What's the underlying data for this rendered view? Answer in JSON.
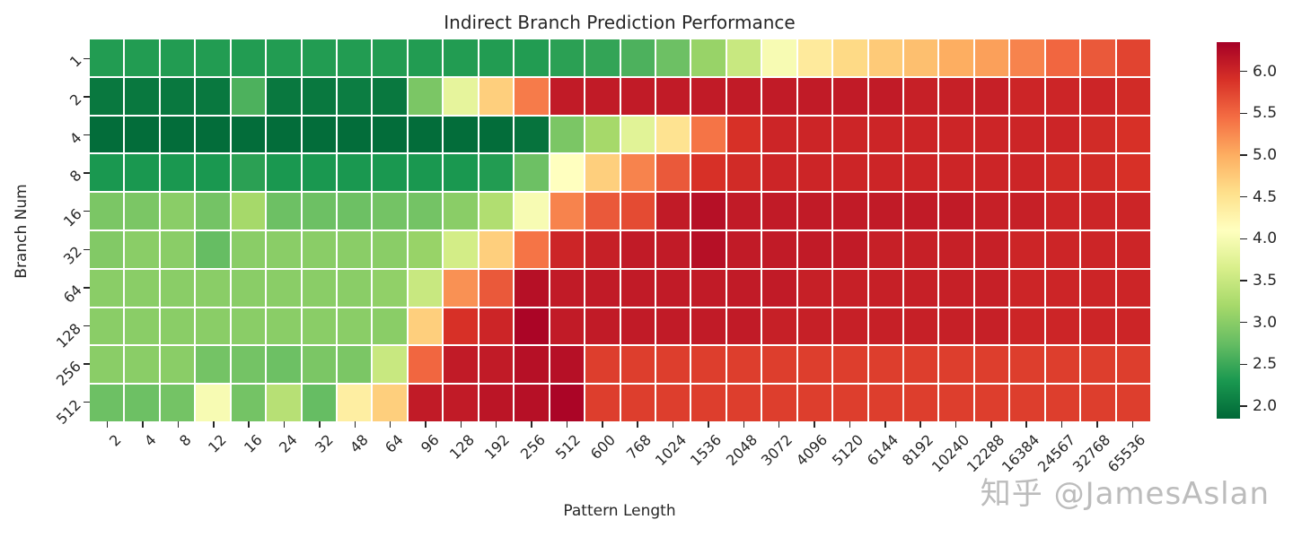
{
  "title": "Indirect Branch Prediction Performance",
  "watermark": "知乎 @JamesAslan",
  "chart_data": {
    "type": "heatmap",
    "title": "Indirect Branch Prediction Performance",
    "xlabel": "Pattern Length",
    "ylabel": "Branch Num",
    "legend_position": "right-colorbar",
    "grid": "white cell separators",
    "colormap": "RdYlGn_r",
    "colormap_stops": [
      "#006837",
      "#1a9850",
      "#66bd63",
      "#a6d96a",
      "#d9ef8b",
      "#ffffbf",
      "#fee08b",
      "#fdae61",
      "#f46d43",
      "#d73027",
      "#a50026"
    ],
    "vmin": 1.85,
    "vmax": 6.35,
    "colorbar_ticks": [
      6.0,
      5.5,
      5.0,
      4.5,
      4.0,
      3.5,
      3.0,
      2.5,
      2.0
    ],
    "x_categories": [
      "2",
      "4",
      "8",
      "12",
      "16",
      "24",
      "32",
      "48",
      "64",
      "96",
      "128",
      "192",
      "256",
      "512",
      "600",
      "768",
      "1024",
      "1536",
      "2048",
      "3072",
      "4096",
      "5120",
      "6144",
      "8192",
      "10240",
      "12288",
      "16384",
      "24567",
      "32768",
      "65536"
    ],
    "y_categories": [
      "1",
      "2",
      "4",
      "8",
      "16",
      "32",
      "64",
      "128",
      "256",
      "512"
    ],
    "values": [
      [
        2.35,
        2.35,
        2.35,
        2.35,
        2.35,
        2.35,
        2.35,
        2.35,
        2.35,
        2.35,
        2.35,
        2.35,
        2.35,
        2.4,
        2.45,
        2.6,
        2.8,
        3.1,
        3.5,
        4.0,
        4.4,
        4.6,
        4.75,
        4.85,
        5.0,
        5.1,
        5.3,
        5.5,
        5.6,
        5.75
      ],
      [
        2.0,
        2.0,
        2.0,
        2.0,
        2.6,
        2.0,
        2.0,
        2.05,
        2.0,
        2.9,
        3.8,
        4.7,
        5.35,
        6.1,
        6.1,
        6.1,
        6.1,
        6.1,
        6.1,
        6.1,
        6.1,
        6.1,
        6.1,
        6.05,
        6.05,
        6.05,
        6.0,
        6.0,
        6.0,
        5.95
      ],
      [
        1.9,
        1.9,
        1.9,
        1.9,
        1.9,
        1.9,
        1.9,
        1.9,
        1.9,
        1.9,
        1.9,
        1.9,
        1.95,
        2.9,
        3.2,
        3.75,
        4.5,
        5.4,
        5.9,
        6.0,
        6.0,
        6.0,
        6.0,
        6.0,
        6.0,
        6.0,
        6.0,
        6.0,
        5.95,
        5.9
      ],
      [
        2.3,
        2.3,
        2.3,
        2.3,
        2.4,
        2.3,
        2.3,
        2.3,
        2.3,
        2.3,
        2.3,
        2.35,
        2.8,
        4.1,
        4.7,
        5.3,
        5.6,
        5.9,
        5.95,
        6.0,
        6.0,
        6.0,
        6.0,
        6.0,
        6.0,
        6.0,
        6.0,
        5.95,
        5.95,
        5.9
      ],
      [
        2.9,
        2.9,
        3.0,
        2.85,
        3.2,
        2.8,
        2.8,
        2.8,
        2.85,
        2.85,
        3.0,
        3.3,
        4.0,
        5.3,
        5.6,
        5.7,
        6.1,
        6.2,
        6.1,
        6.1,
        6.1,
        6.1,
        6.1,
        6.1,
        6.1,
        6.05,
        6.05,
        6.0,
        6.0,
        6.0
      ],
      [
        2.95,
        3.0,
        3.0,
        2.75,
        3.0,
        3.0,
        3.0,
        3.0,
        3.0,
        3.1,
        3.6,
        4.7,
        5.4,
        6.0,
        6.05,
        6.1,
        6.1,
        6.2,
        6.1,
        6.1,
        6.1,
        6.1,
        6.05,
        6.05,
        6.05,
        6.05,
        6.0,
        6.0,
        6.0,
        6.0
      ],
      [
        3.0,
        3.0,
        3.0,
        3.0,
        3.0,
        3.0,
        3.0,
        3.0,
        3.05,
        3.5,
        5.2,
        5.6,
        6.2,
        6.1,
        6.1,
        6.1,
        6.1,
        6.1,
        6.1,
        6.1,
        6.05,
        6.05,
        6.05,
        6.05,
        6.05,
        6.05,
        6.0,
        6.0,
        6.0,
        6.0
      ],
      [
        3.0,
        3.0,
        3.0,
        3.0,
        3.0,
        3.0,
        3.0,
        3.0,
        3.0,
        4.7,
        5.9,
        6.0,
        6.3,
        6.1,
        6.1,
        6.1,
        6.1,
        6.1,
        6.1,
        6.05,
        6.05,
        6.05,
        6.05,
        6.05,
        6.05,
        6.05,
        6.0,
        6.0,
        6.0,
        6.0
      ],
      [
        3.0,
        3.0,
        3.0,
        2.85,
        2.85,
        2.8,
        2.9,
        2.9,
        3.5,
        5.5,
        6.1,
        6.1,
        6.2,
        6.2,
        5.8,
        5.8,
        5.8,
        5.8,
        5.8,
        5.8,
        5.8,
        5.8,
        5.8,
        5.8,
        5.8,
        5.8,
        5.8,
        5.8,
        5.8,
        5.8
      ],
      [
        2.8,
        2.8,
        2.85,
        4.0,
        2.85,
        3.35,
        2.75,
        4.35,
        4.7,
        6.1,
        6.1,
        6.15,
        6.2,
        6.3,
        5.8,
        5.8,
        5.8,
        5.8,
        5.8,
        5.8,
        5.8,
        5.8,
        5.8,
        5.8,
        5.8,
        5.8,
        5.8,
        5.8,
        5.8,
        5.8
      ]
    ]
  }
}
